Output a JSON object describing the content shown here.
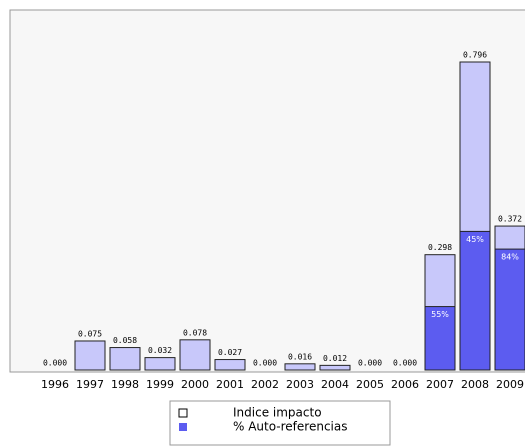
{
  "chart_data": {
    "type": "bar",
    "categories": [
      "1996",
      "1997",
      "1998",
      "1999",
      "2000",
      "2001",
      "2002",
      "2003",
      "2004",
      "2005",
      "2006",
      "2007",
      "2008",
      "2009"
    ],
    "series": [
      {
        "name": "Indice impacto",
        "color": "#c8c8fa",
        "values": [
          0,
          0.075,
          0.058,
          0.032,
          0.078,
          0.027,
          0,
          0.016,
          0.012,
          0,
          0,
          0.298,
          0.796,
          0.372
        ],
        "value_labels": [
          "0.000",
          "0.075",
          "0.058",
          "0.032",
          "0.078",
          "0.027",
          "0.000",
          "0.016",
          "0.012",
          "0.000",
          "0.000",
          "0.298",
          "0.796",
          "0.372"
        ]
      },
      {
        "name": "% Auto-referencias",
        "color": "#5c5cf0",
        "values": [
          null,
          null,
          null,
          null,
          null,
          null,
          null,
          null,
          null,
          null,
          null,
          55,
          45,
          84
        ],
        "value_labels": [
          null,
          null,
          null,
          null,
          null,
          null,
          null,
          null,
          null,
          null,
          null,
          "55%",
          "45%",
          "84%"
        ]
      }
    ]
  }
}
